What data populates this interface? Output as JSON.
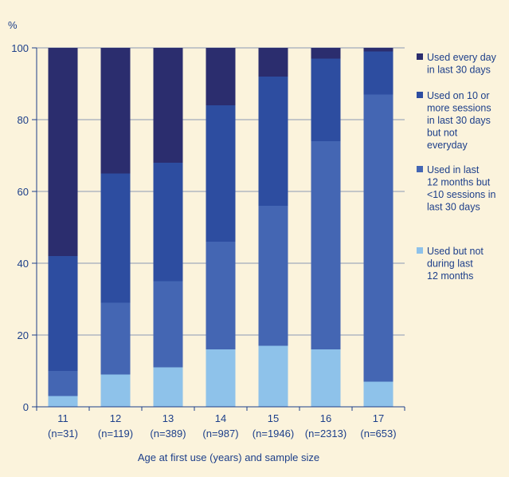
{
  "chart_data": {
    "type": "bar",
    "stacked": true,
    "title": "",
    "ylabel": "%",
    "xlabel": "Age at first use (years) and sample size",
    "ylim": [
      0,
      100
    ],
    "yticks": [
      0,
      20,
      40,
      60,
      80,
      100
    ],
    "grid": true,
    "legend_position": "right",
    "categories": [
      {
        "age": "11",
        "n": "(n=31)"
      },
      {
        "age": "12",
        "n": "(n=119)"
      },
      {
        "age": "13",
        "n": "(n=389)"
      },
      {
        "age": "14",
        "n": "(n=987)"
      },
      {
        "age": "15",
        "n": "(n=1946)"
      },
      {
        "age": "16",
        "n": "(n=2313)"
      },
      {
        "age": "17",
        "n": "(n=653)"
      }
    ],
    "series": [
      {
        "name": "Used but not during last 12 months",
        "color": "#8ec2ea",
        "values": [
          3,
          9,
          11,
          16,
          17,
          16,
          7
        ]
      },
      {
        "name": "Used in last 12 months but <10 sessions in last 30 days",
        "color": "#4466b3",
        "values": [
          7,
          20,
          24,
          30,
          39,
          58,
          80
        ]
      },
      {
        "name": "Used on 10 or more sessions in last 30 days but not everyday",
        "color": "#2d4da0",
        "values": [
          32,
          36,
          33,
          38,
          36,
          23,
          12
        ]
      },
      {
        "name": "Used every day in last 30 days",
        "color": "#2b2d6e",
        "values": [
          58,
          35,
          32,
          16,
          8,
          3,
          1
        ]
      }
    ],
    "legend": [
      {
        "lines": [
          "Used every day",
          "in last 30 days"
        ],
        "color": "#2b2d6e"
      },
      {
        "lines": [
          "Used on 10 or",
          "more sessions",
          "in last 30 days",
          "but not",
          "everyday"
        ],
        "color": "#2d4da0"
      },
      {
        "lines": [
          "Used in last",
          "12 months but",
          "<10 sessions in",
          "last 30 days"
        ],
        "color": "#4466b3"
      },
      {
        "lines": [
          "Used but not",
          "during last",
          "12 months"
        ],
        "color": "#8ec2ea"
      }
    ]
  }
}
